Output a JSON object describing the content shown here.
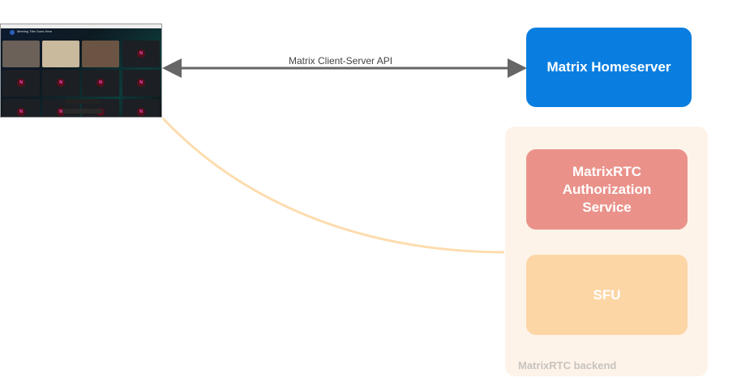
{
  "client_screenshot": {
    "meeting_title": "Meeting Title Goes Here",
    "placeholder_initial": "N"
  },
  "connections": {
    "client_server_api": "Matrix Client-Server API"
  },
  "nodes": {
    "homeserver": "Matrix Homeserver",
    "backend_group": "MatrixRTC backend",
    "auth_service": "MatrixRTC Authorization Service",
    "sfu": "SFU"
  },
  "colors": {
    "homeserver": "#0a7ee0",
    "backend_group": "#fef3e9",
    "auth_service": "#ea928a",
    "sfu": "#fdd6a6",
    "connection_line": "#fddcae",
    "api_arrow": "#666666"
  }
}
